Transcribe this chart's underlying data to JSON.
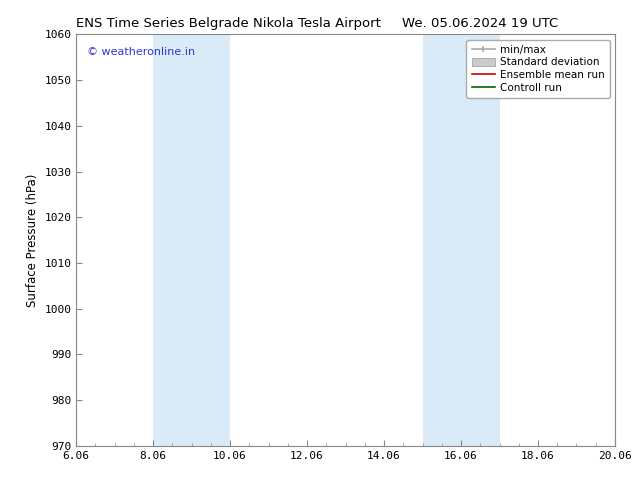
{
  "title_left": "ENS Time Series Belgrade Nikola Tesla Airport",
  "title_right": "We. 05.06.2024 19 UTC",
  "ylabel": "Surface Pressure (hPa)",
  "xlim": [
    6.06,
    20.06
  ],
  "ylim": [
    970,
    1060
  ],
  "xticks": [
    6.06,
    8.06,
    10.06,
    12.06,
    14.06,
    16.06,
    18.06,
    20.06
  ],
  "yticks": [
    970,
    980,
    990,
    1000,
    1010,
    1020,
    1030,
    1040,
    1050,
    1060
  ],
  "background_color": "#ffffff",
  "plot_bg_color": "#ffffff",
  "watermark": "© weatheronline.in",
  "watermark_color": "#3333cc",
  "shaded_bands": [
    {
      "xmin": 8.06,
      "xmax": 10.06,
      "color": "#daeaf7"
    },
    {
      "xmin": 15.06,
      "xmax": 16.06,
      "color": "#daeaf7"
    },
    {
      "xmin": 16.06,
      "xmax": 17.06,
      "color": "#daeaf7"
    }
  ],
  "legend_entries": [
    {
      "label": "min/max",
      "color": "#aaaaaa",
      "lw": 1.2,
      "style": "minmax"
    },
    {
      "label": "Standard deviation",
      "color": "#cccccc",
      "lw": 5,
      "style": "band"
    },
    {
      "label": "Ensemble mean run",
      "color": "#cc0000",
      "lw": 1.2,
      "style": "line"
    },
    {
      "label": "Controll run",
      "color": "#006600",
      "lw": 1.2,
      "style": "line"
    }
  ],
  "title_fontsize": 9.5,
  "label_fontsize": 8.5,
  "tick_fontsize": 8,
  "legend_fontsize": 7.5
}
